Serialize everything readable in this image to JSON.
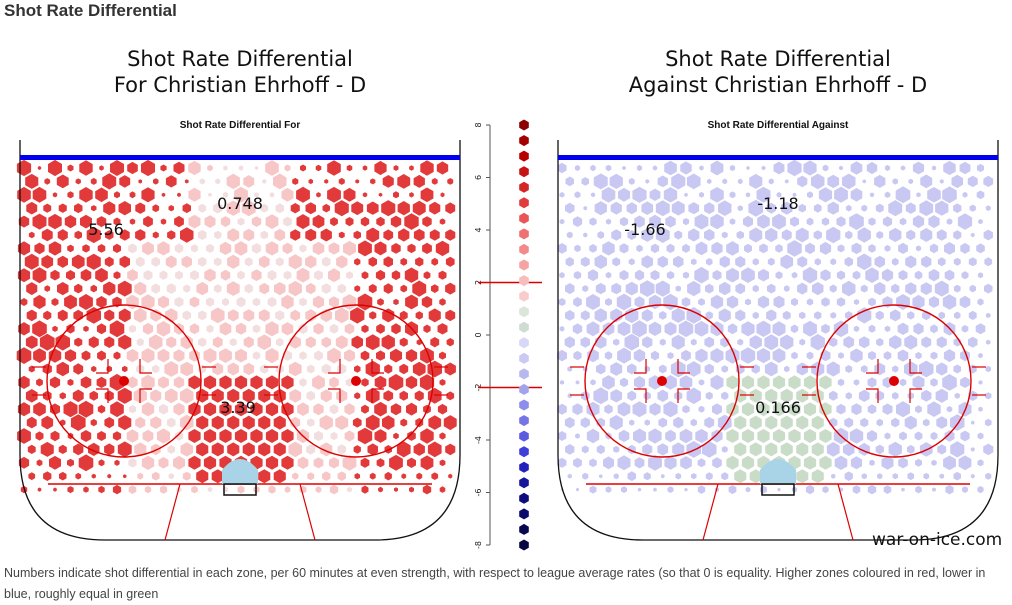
{
  "page": {
    "section_title": "Shot Rate Differential",
    "caption": "Numbers indicate shot differential in each zone, per 60 minutes at even strength, with respect to league average rates (so that 0 is equality. Higher zones coloured in red, lower in blue, roughly equal in green",
    "brand": "war-on-ice.com"
  },
  "panels": [
    {
      "title_line1": "Shot Rate Differential",
      "title_line2": "For Christian Ehrhoff - D",
      "plot_title": "Shot Rate Differential For"
    },
    {
      "title_line1": "Shot Rate Differential",
      "title_line2": "Against Christian Ehrhoff - D",
      "plot_title": "Shot Rate Differential Against"
    }
  ],
  "chart_data": [
    {
      "type": "heatmap",
      "title": "Shot Rate Differential For",
      "zones": [
        {
          "zone": "left point",
          "value": 5.56,
          "label": "5.56",
          "color": "red"
        },
        {
          "zone": "center point",
          "value": 0.748,
          "label": "0.748",
          "color": "red-light"
        },
        {
          "zone": "slot",
          "value": 3.39,
          "label": "3.39",
          "color": "red"
        }
      ],
      "scale_range": [
        -8,
        8
      ]
    },
    {
      "type": "heatmap",
      "title": "Shot Rate Differential Against",
      "zones": [
        {
          "zone": "left point",
          "value": -1.66,
          "label": "-1.66",
          "color": "blue-light"
        },
        {
          "zone": "center point",
          "value": -1.18,
          "label": "-1.18",
          "color": "blue-light"
        },
        {
          "zone": "slot",
          "value": 0.166,
          "label": "0.166",
          "color": "green"
        }
      ],
      "scale_range": [
        -8,
        8
      ]
    },
    {
      "type": "legend_scale",
      "ticks": [
        "8",
        "6",
        "4",
        "2",
        "0",
        "-2",
        "-4",
        "-6",
        "-8"
      ],
      "range": [
        -8,
        8
      ],
      "markers_at": [
        2,
        -2
      ],
      "colors_top_to_bottom": [
        "#8b0000",
        "#a50000",
        "#b70000",
        "#c61414",
        "#d42626",
        "#e13c3c",
        "#e85656",
        "#ee7070",
        "#f38a8a",
        "#f6a3a3",
        "#f8bcbc",
        "#f9cccc",
        "#d9e6d9",
        "#cfdcd1",
        "#d7d7f8",
        "#c9c9f3",
        "#b8b8ef",
        "#a3a3ec",
        "#8d8deb",
        "#7575e6",
        "#5b5be2",
        "#3f3fd9",
        "#2323bb",
        "#16169a",
        "#0d0d7f",
        "#0a0a6a",
        "#080850",
        "#060640"
      ]
    }
  ],
  "colors": {
    "rink_line": "#dd0000",
    "blue_line": "#0000ee",
    "red_dark": "#e23a3a",
    "red_light": "#f7c7c7",
    "blue_light": "#c8c8f2",
    "green": "#c9dcc8",
    "crease": "#a9d3e6"
  }
}
